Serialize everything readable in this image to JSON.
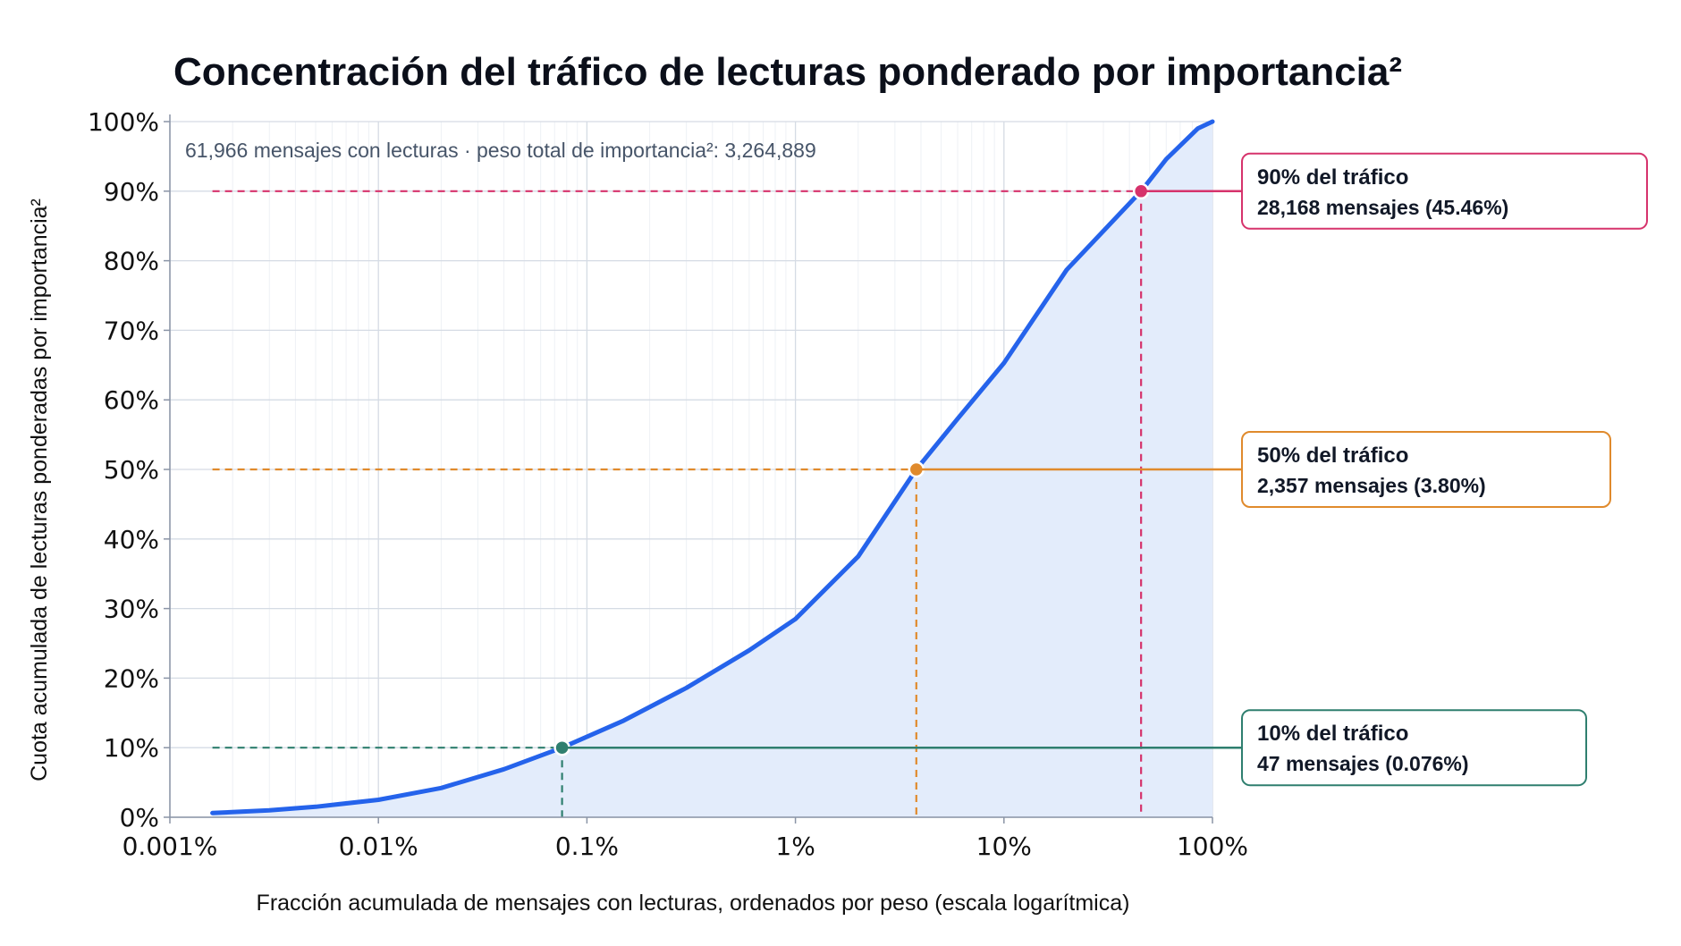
{
  "chart_data": {
    "type": "area",
    "title": "Concentración del tráfico de lecturas ponderado por importancia²",
    "subtitle": "61,966 mensajes con lecturas · peso total de importancia²: 3,264,889",
    "xlabel": "Fracción acumulada de mensajes con lecturas, ordenados por peso (escala logarítmica)",
    "ylabel": "Cuota acumulada de lecturas ponderadas por importancia²",
    "x_scale": "log",
    "xlim": [
      0.001,
      100
    ],
    "ylim": [
      0,
      100
    ],
    "x_ticks": [
      0.001,
      0.01,
      0.1,
      1,
      10,
      100
    ],
    "x_tick_labels": [
      "0.001%",
      "0.01%",
      "0.1%",
      "1%",
      "10%",
      "100%"
    ],
    "y_ticks": [
      0,
      10,
      20,
      30,
      40,
      50,
      60,
      70,
      80,
      90,
      100
    ],
    "y_tick_labels": [
      "0%",
      "10%",
      "20%",
      "30%",
      "40%",
      "50%",
      "60%",
      "70%",
      "80%",
      "90%",
      "100%"
    ],
    "grid": true,
    "series": [
      {
        "x": [
          0.0016,
          0.003,
          0.005,
          0.01,
          0.02,
          0.04,
          0.076,
          0.15,
          0.3,
          0.6,
          1.0,
          2.0,
          3.8,
          6.0,
          10.0,
          20.0,
          45.46,
          60.0,
          85.0,
          100.0
        ],
        "y": [
          0.6,
          1.0,
          1.5,
          2.5,
          4.2,
          6.9,
          10,
          13.9,
          18.6,
          24.0,
          28.5,
          37.5,
          50,
          57.3,
          65.3,
          78.7,
          90,
          94.6,
          99.0,
          100
        ],
        "color": "#2563eb",
        "fill": "#e3ecfb"
      }
    ],
    "thresholds": [
      {
        "share": 10,
        "x": 0.076,
        "color": "#2f7f6f",
        "label": "10% del tráfico",
        "detail": "47 mensajes (0.076%)"
      },
      {
        "share": 50,
        "x": 3.8,
        "color": "#e08a2c",
        "label": "50% del tráfico",
        "detail": "2,357 mensajes (3.80%)"
      },
      {
        "share": 90,
        "x": 45.46,
        "color": "#d6336c",
        "label": "90% del tráfico",
        "detail": "28,168 mensajes (45.46%)"
      }
    ]
  }
}
